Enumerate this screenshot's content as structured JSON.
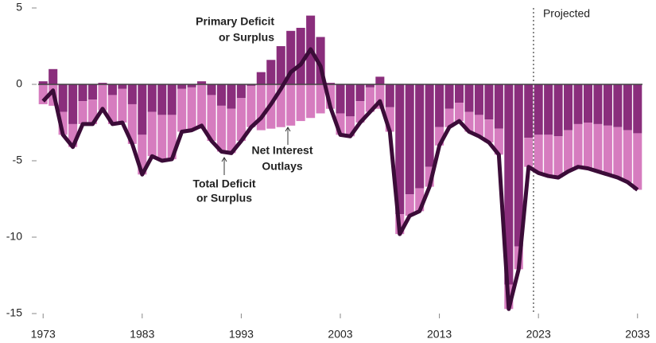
{
  "chart_data": {
    "type": "stacked-bar-line",
    "x": [
      1973,
      1974,
      1975,
      1976,
      1977,
      1978,
      1979,
      1980,
      1981,
      1982,
      1983,
      1984,
      1985,
      1986,
      1987,
      1988,
      1989,
      1990,
      1991,
      1992,
      1993,
      1994,
      1995,
      1996,
      1997,
      1998,
      1999,
      2000,
      2001,
      2002,
      2003,
      2004,
      2005,
      2006,
      2007,
      2008,
      2009,
      2010,
      2011,
      2012,
      2013,
      2014,
      2015,
      2016,
      2017,
      2018,
      2019,
      2020,
      2021,
      2022,
      2023,
      2024,
      2025,
      2026,
      2027,
      2028,
      2029,
      2030,
      2031,
      2032,
      2033
    ],
    "xlim": [
      1972.5,
      2033.5
    ],
    "xticks": [
      1973,
      1983,
      1993,
      2003,
      2013,
      2023,
      2033
    ],
    "ylim": [
      -15,
      5
    ],
    "yticks": [
      5,
      0,
      -5,
      -10,
      -15
    ],
    "series": [
      {
        "name": [
          "Primary Deficit",
          "or Surplus"
        ],
        "color": "#8a2e7c",
        "kind": "bar",
        "values": [
          0.2,
          1.0,
          -1.8,
          -2.6,
          -1.1,
          -1.0,
          0.1,
          -0.7,
          -0.3,
          -1.3,
          -3.3,
          -1.8,
          -2.0,
          -2.0,
          -0.3,
          -0.2,
          0.2,
          -0.7,
          -1.4,
          -1.6,
          -0.9,
          -0.1,
          0.8,
          1.6,
          2.5,
          3.5,
          3.7,
          4.5,
          3.1,
          0.1,
          -1.9,
          -2.1,
          -1.1,
          -0.2,
          0.5,
          -1.5,
          -8.5,
          -7.2,
          -6.8,
          -5.4,
          -2.8,
          -1.6,
          -1.2,
          -1.8,
          -2.0,
          -2.3,
          -2.9,
          -13.1,
          -10.6,
          -3.5,
          -3.3,
          -3.3,
          -3.4,
          -3.0,
          -2.6,
          -2.5,
          -2.6,
          -2.7,
          -2.8,
          -3.0,
          -3.2
        ]
      },
      {
        "name": [
          "Net Interest",
          "Outlays"
        ],
        "color": "#d67cbf",
        "kind": "bar",
        "values": [
          -1.3,
          -1.4,
          -1.5,
          -1.5,
          -1.5,
          -1.6,
          -1.7,
          -1.9,
          -2.2,
          -2.6,
          -2.6,
          -2.9,
          -3.0,
          -2.9,
          -2.8,
          -2.8,
          -2.9,
          -3.0,
          -3.0,
          -2.9,
          -2.8,
          -2.7,
          -3.0,
          -2.9,
          -2.8,
          -2.7,
          -2.4,
          -2.2,
          -1.9,
          -1.6,
          -1.4,
          -1.3,
          -1.4,
          -1.6,
          -1.6,
          -1.6,
          -1.3,
          -1.4,
          -1.5,
          -1.3,
          -1.2,
          -1.2,
          -1.2,
          -1.3,
          -1.4,
          -1.5,
          -1.7,
          -1.6,
          -1.5,
          -1.9,
          -2.5,
          -2.7,
          -2.7,
          -2.7,
          -2.8,
          -3.0,
          -3.1,
          -3.2,
          -3.3,
          -3.4,
          -3.7
        ]
      },
      {
        "name": [
          "Total Deficit",
          "or Surplus"
        ],
        "color": "#3b0c38",
        "kind": "line",
        "values": [
          -1.1,
          -0.4,
          -3.3,
          -4.1,
          -2.6,
          -2.6,
          -1.6,
          -2.6,
          -2.5,
          -3.9,
          -5.9,
          -4.7,
          -5.0,
          -4.9,
          -3.1,
          -3.0,
          -2.7,
          -3.7,
          -4.4,
          -4.5,
          -3.7,
          -2.8,
          -2.2,
          -1.3,
          -0.3,
          0.8,
          1.3,
          2.3,
          1.2,
          -1.5,
          -3.3,
          -3.4,
          -2.5,
          -1.8,
          -1.1,
          -3.1,
          -9.8,
          -8.6,
          -8.3,
          -6.7,
          -4.0,
          -2.8,
          -2.4,
          -3.1,
          -3.4,
          -3.8,
          -4.6,
          -14.7,
          -12.1,
          -5.4,
          -5.8,
          -6.0,
          -6.1,
          -5.7,
          -5.4,
          -5.5,
          -5.7,
          -5.9,
          -6.1,
          -6.4,
          -6.9
        ]
      }
    ],
    "projection": {
      "label": "Projected",
      "start": 2023
    }
  }
}
